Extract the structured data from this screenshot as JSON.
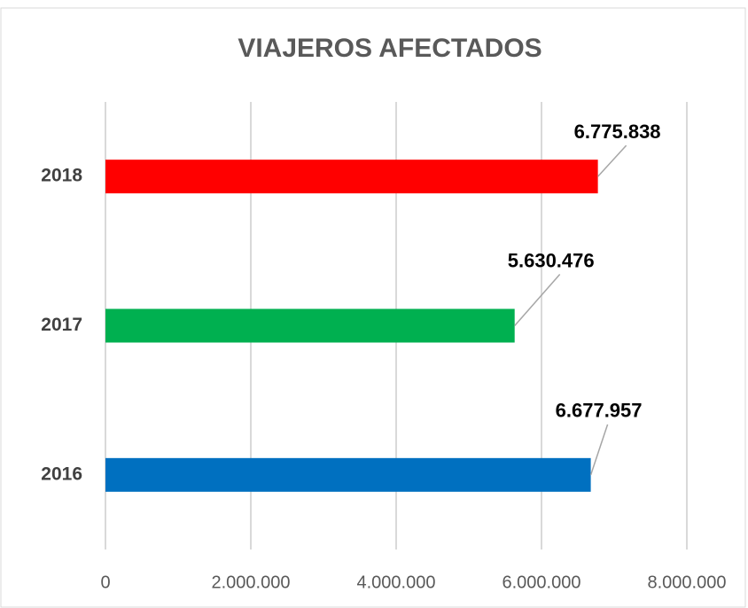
{
  "chart_data": {
    "type": "bar",
    "orientation": "horizontal",
    "title": "VIAJEROS AFECTADOS",
    "categories": [
      "2016",
      "2017",
      "2018"
    ],
    "values": [
      6677957,
      5630476,
      6775838
    ],
    "value_labels": [
      "6.677.957",
      "5.630.476",
      "6.775.838"
    ],
    "colors": [
      "#0070c0",
      "#00b050",
      "#ff0000"
    ],
    "xlim": [
      0,
      8000000
    ],
    "xticks": [
      0,
      {
        "value": 2000000,
        "label": "2.000.000"
      },
      {
        "value": 4000000,
        "label": "4.000.000"
      },
      {
        "value": 6000000,
        "label": "6.000.000"
      },
      {
        "value": 8000000,
        "label": "8.000.000"
      }
    ],
    "grid": true
  }
}
